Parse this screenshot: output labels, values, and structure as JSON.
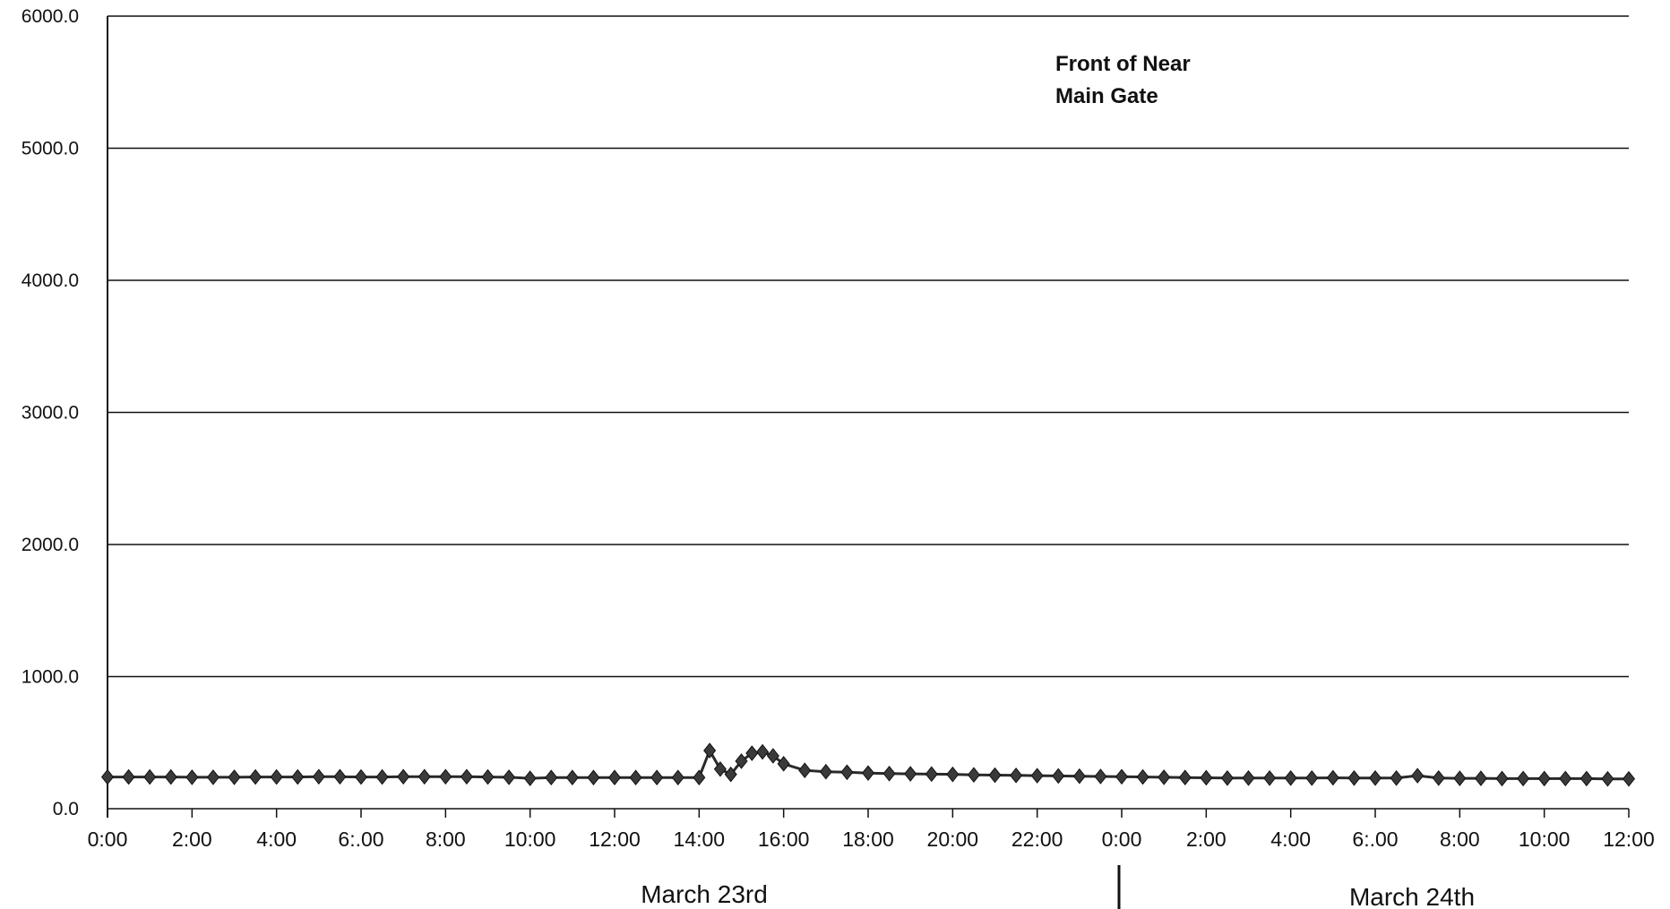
{
  "chart_data": {
    "type": "line",
    "title": "",
    "xlabel": "",
    "ylabel": "",
    "annotation": [
      "Front of Near",
      "Main Gate"
    ],
    "ylim": [
      0,
      6000
    ],
    "yticks": [
      "6000.0",
      "5000.0",
      "4000.0",
      "3000.0",
      "2000.0",
      "1000.0",
      "0.0"
    ],
    "xlim_hours": [
      0,
      36
    ],
    "xticks": [
      "0:00",
      "2:00",
      "4:00",
      "6:.00",
      "8:00",
      "10:00",
      "12:00",
      "14:00",
      "16:00",
      "18:00",
      "20:00",
      "22:00",
      "0:00",
      "2:00",
      "4:00",
      "6:.00",
      "8:00",
      "10:00",
      "12:00"
    ],
    "day_labels": [
      "March 23rd",
      "March 24th"
    ],
    "grid": true,
    "marker": "diamond",
    "line_color": "#2a2a2a",
    "series": [
      {
        "x_hours": [
          0,
          0.5,
          1,
          1.5,
          2,
          2.5,
          3,
          3.5,
          4,
          4.5,
          5,
          5.5,
          6,
          6.5,
          7,
          7.5,
          8,
          8.5,
          9,
          9.5,
          10,
          10.5,
          11,
          11.5,
          12,
          12.5,
          13,
          13.5,
          14,
          14.25,
          14.5,
          14.75,
          15,
          15.25,
          15.5,
          15.75,
          16,
          16.5,
          17,
          17.5,
          18,
          18.5,
          19,
          19.5,
          20,
          20.5,
          21,
          21.5,
          22,
          22.5,
          23,
          23.5,
          24,
          24.5,
          25,
          25.5,
          26,
          26.5,
          27,
          27.5,
          28,
          28.5,
          29,
          29.5,
          30,
          30.5,
          31,
          31.5,
          32,
          32.5,
          33,
          33.5,
          34,
          34.5,
          35,
          35.5,
          36
        ],
        "values": [
          240,
          240,
          240,
          240,
          238,
          238,
          238,
          240,
          240,
          240,
          242,
          242,
          240,
          240,
          242,
          242,
          242,
          242,
          240,
          238,
          230,
          236,
          236,
          236,
          236,
          236,
          236,
          236,
          236,
          440,
          300,
          260,
          360,
          420,
          430,
          400,
          340,
          290,
          280,
          276,
          270,
          266,
          264,
          262,
          260,
          256,
          254,
          252,
          250,
          248,
          246,
          244,
          242,
          240,
          238,
          236,
          234,
          232,
          232,
          232,
          232,
          232,
          234,
          232,
          232,
          232,
          250,
          232,
          230,
          230,
          228,
          228,
          228,
          228,
          228,
          226,
          226
        ]
      }
    ]
  }
}
